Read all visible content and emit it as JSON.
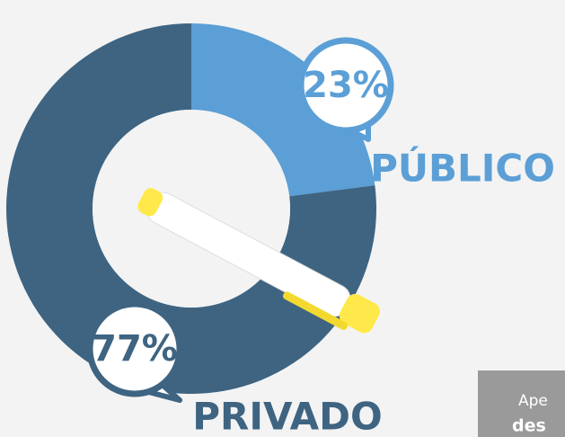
{
  "chart_data": {
    "type": "donut",
    "categories": [
      "PÚBLICO",
      "PRIVADO"
    ],
    "values": [
      23,
      77
    ],
    "value_labels": [
      "23%",
      "77%"
    ],
    "colors": [
      "#5b9fd6",
      "#3e6482"
    ]
  },
  "side_box": {
    "lines": [
      "Ape",
      "des"
    ]
  }
}
